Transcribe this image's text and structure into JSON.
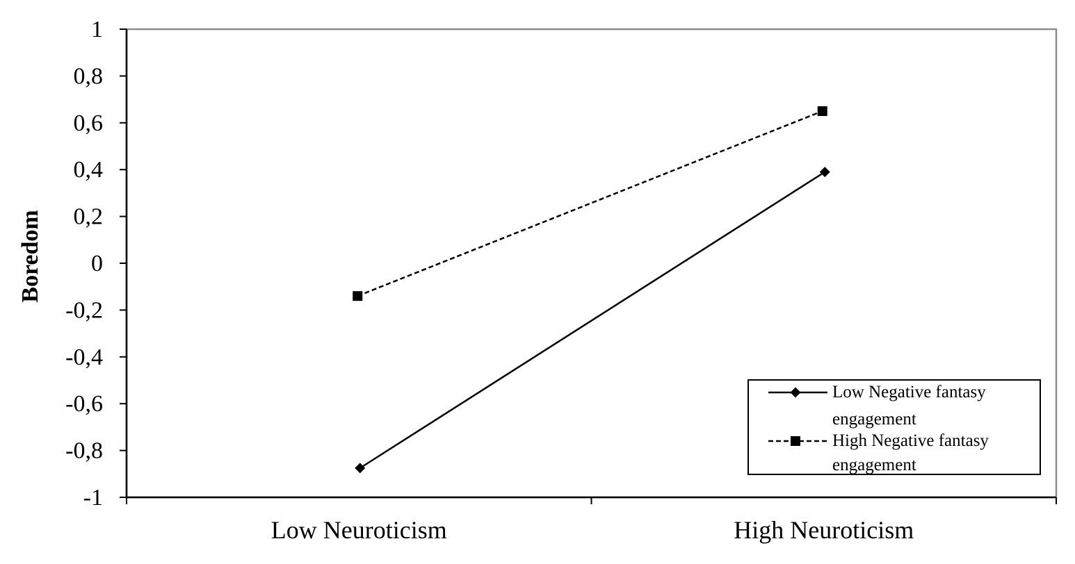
{
  "chart_data": {
    "type": "line",
    "title": "",
    "xlabel": "",
    "ylabel": "Boredom",
    "categories": [
      "Low Neuroticism",
      "High Neuroticism"
    ],
    "ylim": [
      -1,
      1
    ],
    "yticks": [
      "1",
      "0,8",
      "0,6",
      "0,4",
      "0,2",
      "0",
      "-0,2",
      "-0,4",
      "-0,6",
      "-0,8",
      "-1"
    ],
    "grid": false,
    "legend": {
      "placement": "bottom-right",
      "entries": [
        [
          "Low Negative fantasy",
          "engagement"
        ],
        [
          "High Negative fantasy",
          "engagement"
        ]
      ]
    },
    "series": [
      {
        "name": "Low Negative fantasy engagement",
        "values": [
          -0.875,
          0.39
        ],
        "line": "solid",
        "marker": "diamond",
        "color": "#000000"
      },
      {
        "name": "High Negative fantasy engagement",
        "values": [
          -0.14,
          0.65
        ],
        "line": "dashed",
        "marker": "square",
        "color": "#000000"
      }
    ]
  }
}
